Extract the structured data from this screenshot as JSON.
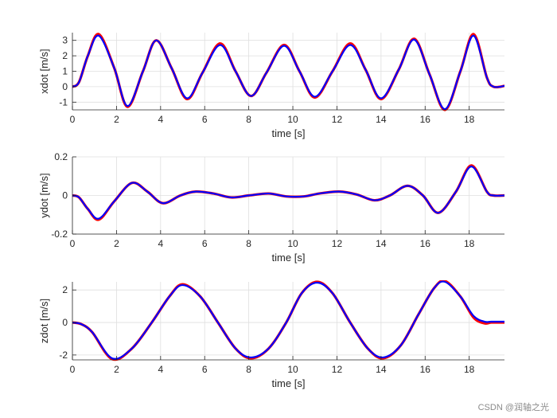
{
  "watermark": "CSDN @润轴之光",
  "colors": {
    "reference": "#ff0000",
    "actual": "#0000ff",
    "grid": "#dfdfdf",
    "axis": "#262626"
  },
  "chart_data": [
    {
      "type": "line",
      "title": "",
      "xlabel": "time [s]",
      "ylabel": "xdot [m/s]",
      "xlim": [
        0,
        19.6
      ],
      "ylim": [
        -1.5,
        3.5
      ],
      "xticks": [
        0,
        2,
        4,
        6,
        8,
        10,
        12,
        14,
        16,
        18
      ],
      "yticks": [
        -1,
        0,
        1,
        2,
        3
      ],
      "grid": true,
      "series": [
        {
          "name": "",
          "color": "#ff0000",
          "width": 3.2,
          "x": [
            0,
            0.3,
            0.7,
            1.2,
            1.9,
            2.5,
            3.2,
            3.8,
            4.5,
            5.2,
            5.9,
            6.7,
            7.4,
            8.1,
            8.8,
            9.6,
            10.3,
            11.0,
            11.8,
            12.6,
            13.3,
            14.0,
            14.8,
            15.5,
            16.2,
            16.9,
            17.6,
            18.2,
            18.8,
            19.1,
            19.6
          ],
          "y": [
            0,
            0.3,
            2.0,
            3.4,
            1.2,
            -1.3,
            1.0,
            3.0,
            1.2,
            -0.8,
            0.9,
            2.8,
            1.0,
            -0.6,
            0.9,
            2.7,
            1.0,
            -0.7,
            1.0,
            2.8,
            1.1,
            -0.8,
            1.1,
            3.1,
            0.8,
            -1.5,
            1.0,
            3.4,
            0.6,
            0.0,
            0.05
          ]
        },
        {
          "name": "",
          "color": "#0000ff",
          "width": 2.2,
          "x": [
            0,
            0.3,
            0.7,
            1.2,
            1.9,
            2.5,
            3.2,
            3.8,
            4.5,
            5.2,
            5.9,
            6.7,
            7.4,
            8.1,
            8.8,
            9.6,
            10.3,
            11.0,
            11.8,
            12.6,
            13.3,
            14.0,
            14.8,
            15.5,
            16.2,
            16.9,
            17.6,
            18.2,
            18.8,
            19.1,
            19.6
          ],
          "y": [
            0,
            0.3,
            2.0,
            3.3,
            1.2,
            -1.25,
            1.0,
            3.0,
            1.2,
            -0.75,
            0.9,
            2.7,
            1.0,
            -0.6,
            0.9,
            2.65,
            1.0,
            -0.65,
            1.0,
            2.7,
            1.1,
            -0.75,
            1.1,
            3.05,
            0.8,
            -1.45,
            1.0,
            3.3,
            0.6,
            0.0,
            0.05
          ]
        }
      ]
    },
    {
      "type": "line",
      "title": "",
      "xlabel": "time [s]",
      "ylabel": "ydot [m/s]",
      "xlim": [
        0,
        19.6
      ],
      "ylim": [
        -0.2,
        0.2
      ],
      "xticks": [
        0,
        2,
        4,
        6,
        8,
        10,
        12,
        14,
        16,
        18
      ],
      "yticks": [
        -0.2,
        0,
        0.2
      ],
      "grid": true,
      "series": [
        {
          "name": "",
          "color": "#ff0000",
          "width": 3.2,
          "x": [
            0,
            0.3,
            0.7,
            1.2,
            1.9,
            2.7,
            3.4,
            4.1,
            4.9,
            5.6,
            6.4,
            7.2,
            8.0,
            8.9,
            9.7,
            10.5,
            11.2,
            12.1,
            12.9,
            13.7,
            14.4,
            15.2,
            15.9,
            16.6,
            17.4,
            18.1,
            18.8,
            19.1,
            19.6
          ],
          "y": [
            0,
            -0.01,
            -0.07,
            -0.125,
            -0.03,
            0.065,
            0.02,
            -0.04,
            0.0,
            0.02,
            0.01,
            -0.01,
            0.0,
            0.01,
            -0.005,
            -0.005,
            0.01,
            0.02,
            0.005,
            -0.025,
            0.0,
            0.05,
            0.0,
            -0.09,
            0.02,
            0.155,
            0.02,
            0.0,
            0.0
          ]
        },
        {
          "name": "",
          "color": "#0000ff",
          "width": 2.2,
          "x": [
            0,
            0.3,
            0.7,
            1.2,
            1.9,
            2.7,
            3.4,
            4.1,
            4.9,
            5.6,
            6.4,
            7.2,
            8.0,
            8.9,
            9.7,
            10.5,
            11.2,
            12.1,
            12.9,
            13.7,
            14.4,
            15.2,
            15.9,
            16.6,
            17.4,
            18.1,
            18.8,
            19.1,
            19.6
          ],
          "y": [
            0,
            -0.01,
            -0.07,
            -0.12,
            -0.03,
            0.065,
            0.02,
            -0.04,
            0.0,
            0.02,
            0.01,
            -0.01,
            0.0,
            0.01,
            -0.005,
            -0.005,
            0.01,
            0.02,
            0.005,
            -0.025,
            0.0,
            0.05,
            0.0,
            -0.09,
            0.02,
            0.15,
            0.02,
            0.0,
            0.0
          ]
        }
      ]
    },
    {
      "type": "line",
      "title": "",
      "xlabel": "time [s]",
      "ylabel": "zdot [m/s]",
      "xlim": [
        0,
        19.6
      ],
      "ylim": [
        -2.3,
        2.5
      ],
      "xticks": [
        0,
        2,
        4,
        6,
        8,
        10,
        12,
        14,
        16,
        18
      ],
      "yticks": [
        -2,
        0,
        2
      ],
      "grid": true,
      "series": [
        {
          "name": "",
          "color": "#ff0000",
          "width": 3.2,
          "x": [
            0,
            0.4,
            0.9,
            1.8,
            2.7,
            3.6,
            4.4,
            5.0,
            5.8,
            6.6,
            7.4,
            8.1,
            8.9,
            9.7,
            10.4,
            11.1,
            11.8,
            12.6,
            13.4,
            14.1,
            14.9,
            15.7,
            16.4,
            16.9,
            17.6,
            18.2,
            18.7,
            19.0,
            19.6
          ],
          "y": [
            0,
            -0.1,
            -0.6,
            -2.25,
            -1.6,
            0.0,
            1.6,
            2.35,
            1.6,
            0.0,
            -1.6,
            -2.2,
            -1.6,
            0.0,
            1.8,
            2.5,
            1.8,
            0.0,
            -1.6,
            -2.2,
            -1.4,
            0.5,
            2.1,
            2.55,
            1.6,
            0.3,
            -0.05,
            0.0,
            0.0
          ]
        },
        {
          "name": "",
          "color": "#0000ff",
          "width": 2.2,
          "x": [
            0,
            0.4,
            0.9,
            1.8,
            2.7,
            3.6,
            4.4,
            5.0,
            5.8,
            6.6,
            7.4,
            8.1,
            8.9,
            9.7,
            10.4,
            11.1,
            11.8,
            12.6,
            13.4,
            14.1,
            14.9,
            15.7,
            16.4,
            16.9,
            17.6,
            18.2,
            18.7,
            19.0,
            19.6
          ],
          "y": [
            0,
            -0.1,
            -0.6,
            -2.2,
            -1.6,
            0.0,
            1.6,
            2.3,
            1.6,
            0.0,
            -1.6,
            -2.15,
            -1.6,
            0.0,
            1.8,
            2.45,
            1.8,
            0.0,
            -1.6,
            -2.15,
            -1.4,
            0.5,
            2.1,
            2.5,
            1.6,
            0.4,
            0.05,
            0.05,
            0.05
          ]
        }
      ]
    }
  ]
}
